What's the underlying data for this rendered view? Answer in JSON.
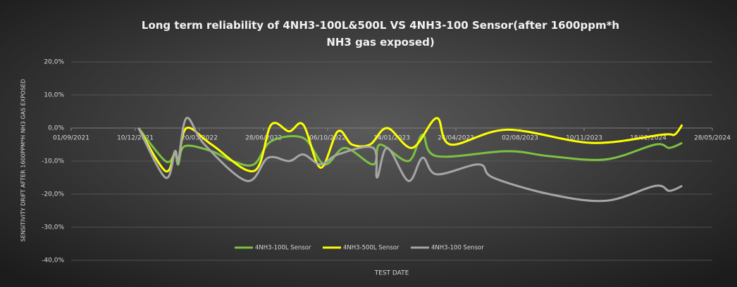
{
  "chart_data": {
    "type": "line",
    "title": "Long term reliability of 4NH3-100L&500L VS 4NH3-100 Sensor(after 1600ppm*h NH3 gas exposed)",
    "x_label": "TEST DATE",
    "y_label": "SENSITIVITY DRIFT AFTER 1600PPM*H NH3 GAS EXPOSED",
    "xlim": [
      "2021-09-01",
      "2024-05-28"
    ],
    "xticks": [
      {
        "value": "2021-09-01",
        "label": "01/09/2021"
      },
      {
        "value": "2021-12-10",
        "label": "10/12/2021"
      },
      {
        "value": "2022-03-20",
        "label": "20/03/2022"
      },
      {
        "value": "2022-06-28",
        "label": "28/06/2022"
      },
      {
        "value": "2022-10-06",
        "label": "06/10/2022"
      },
      {
        "value": "2023-01-14",
        "label": "14/01/2023"
      },
      {
        "value": "2023-04-24",
        "label": "24/04/2023"
      },
      {
        "value": "2023-08-02",
        "label": "02/08/2023"
      },
      {
        "value": "2023-11-10",
        "label": "10/11/2023"
      },
      {
        "value": "2024-02-18",
        "label": "18/02/2024"
      },
      {
        "value": "2024-05-28",
        "label": "28/05/2024"
      }
    ],
    "ylim": [
      -40,
      20
    ],
    "yticks": [
      {
        "value": 20,
        "label": "20,0%"
      },
      {
        "value": 10,
        "label": "10,0%"
      },
      {
        "value": 0,
        "label": "0,0%"
      },
      {
        "value": -10,
        "label": "-10,0%"
      },
      {
        "value": -20,
        "label": "-20,0%"
      },
      {
        "value": -30,
        "label": "-30,0%"
      },
      {
        "value": -40,
        "label": "-40,0%"
      }
    ],
    "grid": true,
    "legend": "bottom",
    "series": [
      {
        "name": "4NH3-100L Sensor",
        "color": "#7cc242",
        "x": [
          "2021-12-15",
          "2022-01-26",
          "2022-02-10",
          "2022-02-15",
          "2022-02-25",
          "2022-04-08",
          "2022-05-11",
          "2022-06-13",
          "2022-07-10",
          "2022-08-29",
          "2022-10-01",
          "2022-11-02",
          "2022-12-16",
          "2022-12-27",
          "2023-02-09",
          "2023-03-03",
          "2023-03-25",
          "2023-07-13",
          "2023-09-17",
          "2023-12-14",
          "2024-02-29",
          "2024-03-22",
          "2024-04-11"
        ],
        "values": [
          0,
          -10,
          -8,
          -11,
          -5.5,
          -7,
          -10,
          -11,
          -4,
          -3,
          -11,
          -6,
          -11,
          -5,
          -10,
          -2,
          -8.5,
          -7,
          -8.5,
          -9.5,
          -5,
          -6,
          -4.5
        ]
      },
      {
        "name": "4NH3-500L Sensor",
        "color": "#ffff00",
        "x": [
          "2021-12-15",
          "2022-01-26",
          "2022-02-10",
          "2022-02-15",
          "2022-02-28",
          "2022-04-08",
          "2022-06-13",
          "2022-07-10",
          "2022-08-07",
          "2022-08-29",
          "2022-09-25",
          "2022-10-22",
          "2022-11-13",
          "2022-12-11",
          "2023-01-07",
          "2023-02-15",
          "2023-03-25",
          "2023-04-16",
          "2023-07-13",
          "2023-11-22",
          "2024-03-11",
          "2024-03-30",
          "2024-04-11"
        ],
        "values": [
          0,
          -13,
          -7,
          -10,
          0,
          -5,
          -13,
          1,
          -1,
          1,
          -12,
          -1,
          -5,
          -5,
          0,
          -6,
          3,
          -5,
          -0.5,
          -4.5,
          -2,
          -2,
          1
        ]
      },
      {
        "name": "4NH3-100 Sensor",
        "color": "#a6a6a6",
        "x": [
          "2021-12-15",
          "2022-01-26",
          "2022-02-10",
          "2022-02-15",
          "2022-02-28",
          "2022-03-28",
          "2022-06-02",
          "2022-07-05",
          "2022-08-07",
          "2022-08-29",
          "2022-09-25",
          "2022-10-22",
          "2022-12-16",
          "2022-12-22",
          "2023-01-07",
          "2023-02-09",
          "2023-03-03",
          "2023-03-25",
          "2023-05-30",
          "2023-06-21",
          "2023-09-17",
          "2023-12-14",
          "2024-02-29",
          "2024-03-22",
          "2024-04-11"
        ],
        "values": [
          0,
          -15,
          -7,
          -10,
          3,
          -5,
          -16,
          -9,
          -10,
          -8,
          -11,
          -8,
          -6,
          -15,
          -6,
          -16,
          -9,
          -14,
          -11,
          -15,
          -20,
          -22,
          -17.5,
          -19,
          -17.5
        ]
      }
    ]
  }
}
